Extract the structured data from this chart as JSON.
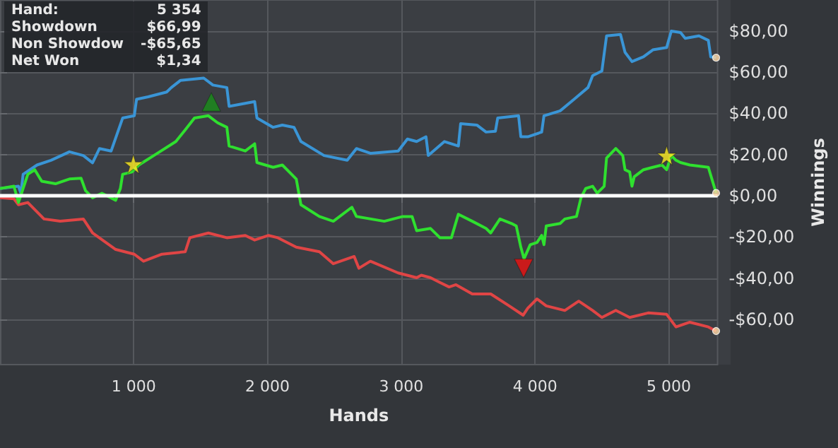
{
  "chart_data": {
    "type": "line",
    "xlabel": "Hands",
    "ylabel": "Winnings",
    "annotations": [
      "Hand:",
      "5 354",
      "Showdown",
      "$66,99",
      "Non Showdow",
      "-$65,65",
      "Net Won",
      "$1,34"
    ],
    "xlim": [
      0,
      5365
    ],
    "xticks": [
      {
        "value": 1000,
        "label": "1 000"
      },
      {
        "value": 2000,
        "label": "2 000"
      },
      {
        "value": 3000,
        "label": "3 000"
      },
      {
        "value": 4000,
        "label": "4 000"
      },
      {
        "value": 5000,
        "label": "5 000"
      }
    ],
    "ylim": [
      -82,
      95
    ],
    "yticks": [
      {
        "value": -60,
        "label": "-$60,00"
      },
      {
        "value": -40,
        "label": "-$40,00"
      },
      {
        "value": -20,
        "label": "-$20,00"
      },
      {
        "value": 0,
        "label": "$0,00"
      },
      {
        "value": 20,
        "label": "$20,00"
      },
      {
        "value": 40,
        "label": "$40,00"
      },
      {
        "value": 60,
        "label": "$60,00"
      },
      {
        "value": 80,
        "label": "$80,00"
      }
    ],
    "grid": true,
    "ref_lines": [
      {
        "axis": "y",
        "value": 0,
        "color": "#ffffff"
      }
    ],
    "series": [
      {
        "marker": "none",
        "color": "#3a95d6",
        "x": [
          0,
          138,
          156,
          173,
          277,
          381,
          519,
          623,
          692,
          744,
          831,
          917,
          1004,
          1021,
          1108,
          1246,
          1281,
          1350,
          1523,
          1592,
          1696,
          1713,
          1904,
          1921,
          2042,
          2111,
          2198,
          2250,
          2423,
          2596,
          2665,
          2769,
          2977,
          3046,
          3115,
          3185,
          3202,
          3323,
          3427,
          3444,
          3565,
          3634,
          3704,
          3721,
          3877,
          3894,
          3946,
          4050,
          4067,
          4188,
          4292,
          4396,
          4431,
          4500,
          4535,
          4639,
          4673,
          4725,
          4811,
          4881,
          4984,
          5019,
          5088,
          5123,
          5226,
          5296,
          5314,
          5354
        ],
        "values": [
          3.5,
          4.6,
          1.2,
          10.4,
          14.9,
          17.2,
          21.3,
          19.5,
          16,
          22.9,
          21.7,
          37.7,
          38.8,
          46.8,
          48,
          50.3,
          52.5,
          56,
          57.1,
          53.7,
          52.5,
          43.4,
          45.7,
          37.7,
          33.2,
          34.3,
          33.2,
          26.3,
          19.5,
          17.2,
          22.9,
          20.6,
          21.7,
          27.5,
          26.3,
          28.6,
          19.5,
          26.3,
          24.1,
          35,
          34.3,
          30.9,
          31.3,
          37.7,
          38.8,
          28.6,
          28.6,
          30.9,
          38.8,
          41.2,
          46.8,
          52.5,
          58.3,
          60.5,
          77.6,
          78.3,
          69.6,
          65.1,
          67.4,
          70.8,
          71.9,
          79.9,
          79.2,
          76.4,
          77.6,
          75.4,
          67.4,
          67
        ]
      },
      {
        "marker": "none",
        "color": "#e04545",
        "x": [
          0,
          104,
          138,
          208,
          294,
          329,
          450,
          623,
          692,
          865,
          1004,
          1073,
          1211,
          1385,
          1419,
          1558,
          1696,
          1834,
          1904,
          2008,
          2077,
          2215,
          2388,
          2492,
          2648,
          2683,
          2769,
          2977,
          3115,
          3150,
          3219,
          3289,
          3358,
          3409,
          3531,
          3669,
          3807,
          3911,
          3946,
          4015,
          4084,
          4223,
          4327,
          4431,
          4500,
          4604,
          4708,
          4846,
          4984,
          5054,
          5158,
          5296,
          5354
        ],
        "values": [
          -1,
          -1.5,
          -4.4,
          -3.3,
          -9,
          -11.3,
          -12.4,
          -11.3,
          -18.1,
          -26.1,
          -28.4,
          -31.8,
          -28.4,
          -27.2,
          -20.4,
          -18.1,
          -20.4,
          -19.3,
          -21.5,
          -19.3,
          -20.4,
          -25,
          -27.2,
          -33,
          -29.5,
          -35.2,
          -31.8,
          -37.5,
          -39.8,
          -38.6,
          -39.8,
          -42.1,
          -44.3,
          -43.2,
          -47.7,
          -47.7,
          -53.5,
          -58,
          -54.6,
          -50.1,
          -53.5,
          -55.7,
          -51.2,
          -55.7,
          -59.1,
          -55.7,
          -59.1,
          -56.9,
          -57.6,
          -63.7,
          -61.4,
          -63.7,
          -65.7
        ]
      },
      {
        "marker": "none",
        "color": "#2fe02f",
        "x": [
          0,
          104,
          138,
          208,
          260,
          312,
          415,
          519,
          606,
          640,
          692,
          762,
          865,
          900,
          917,
          987,
          1038,
          1177,
          1315,
          1385,
          1454,
          1558,
          1627,
          1696,
          1713,
          1834,
          1904,
          1921,
          2042,
          2111,
          2215,
          2250,
          2388,
          2492,
          2631,
          2665,
          2873,
          3011,
          3081,
          3115,
          3219,
          3289,
          3375,
          3427,
          3531,
          3634,
          3669,
          3738,
          3825,
          3860,
          3894,
          3918,
          3964,
          4015,
          4050,
          4067,
          4084,
          4188,
          4223,
          4310,
          4344,
          4379,
          4431,
          4465,
          4517,
          4535,
          4604,
          4656,
          4673,
          4708,
          4725,
          4742,
          4811,
          4881,
          4950,
          4984,
          5019,
          5054,
          5088,
          5158,
          5296,
          5354
        ],
        "values": [
          3.5,
          4.6,
          -3.3,
          10.4,
          12.6,
          7,
          5.8,
          8.1,
          8.5,
          2.4,
          -1,
          1.2,
          -2.2,
          3.5,
          10.4,
          11.5,
          14.9,
          20.6,
          26.3,
          32,
          37.7,
          38.8,
          35.4,
          33.2,
          24.1,
          21.7,
          25.2,
          16.1,
          13.8,
          14.9,
          8.1,
          -4.4,
          -10.1,
          -12.4,
          -5.6,
          -10.1,
          -12.4,
          -10.1,
          -10.1,
          -17,
          -15.9,
          -20.4,
          -20.4,
          -9,
          -12.4,
          -15.9,
          -18.1,
          -11.3,
          -13.5,
          -14.7,
          -25,
          -30.6,
          -23.8,
          -22.7,
          -19.3,
          -23.8,
          -14.7,
          -13.5,
          -11.3,
          -10.1,
          -1,
          3.5,
          4.6,
          1.2,
          4.6,
          18.3,
          22.9,
          19.5,
          12.6,
          11.5,
          4.6,
          9.2,
          12.6,
          13.8,
          14.9,
          12.6,
          19.5,
          17.2,
          16.1,
          14.9,
          13.8,
          1.3
        ]
      },
      {
        "type": "scatter",
        "marker": "star",
        "color": "#ffee22",
        "x": [
          997,
          4984
        ],
        "values": [
          15.3,
          19.5
        ]
      },
      {
        "type": "scatter",
        "marker": "triangle",
        "color": "#1a8f1a",
        "x": [
          1580
        ],
        "values": [
          45.5
        ]
      },
      {
        "type": "scatter",
        "marker": "triangle_down",
        "color": "#ee1111",
        "x": [
          3915
        ],
        "values": [
          -35.2
        ]
      },
      {
        "type": "scatter",
        "marker": "circle",
        "color": "#ffd9a8",
        "x": [
          5354,
          5354,
          5354
        ],
        "values": [
          67,
          1.3,
          -65.7
        ]
      }
    ]
  }
}
